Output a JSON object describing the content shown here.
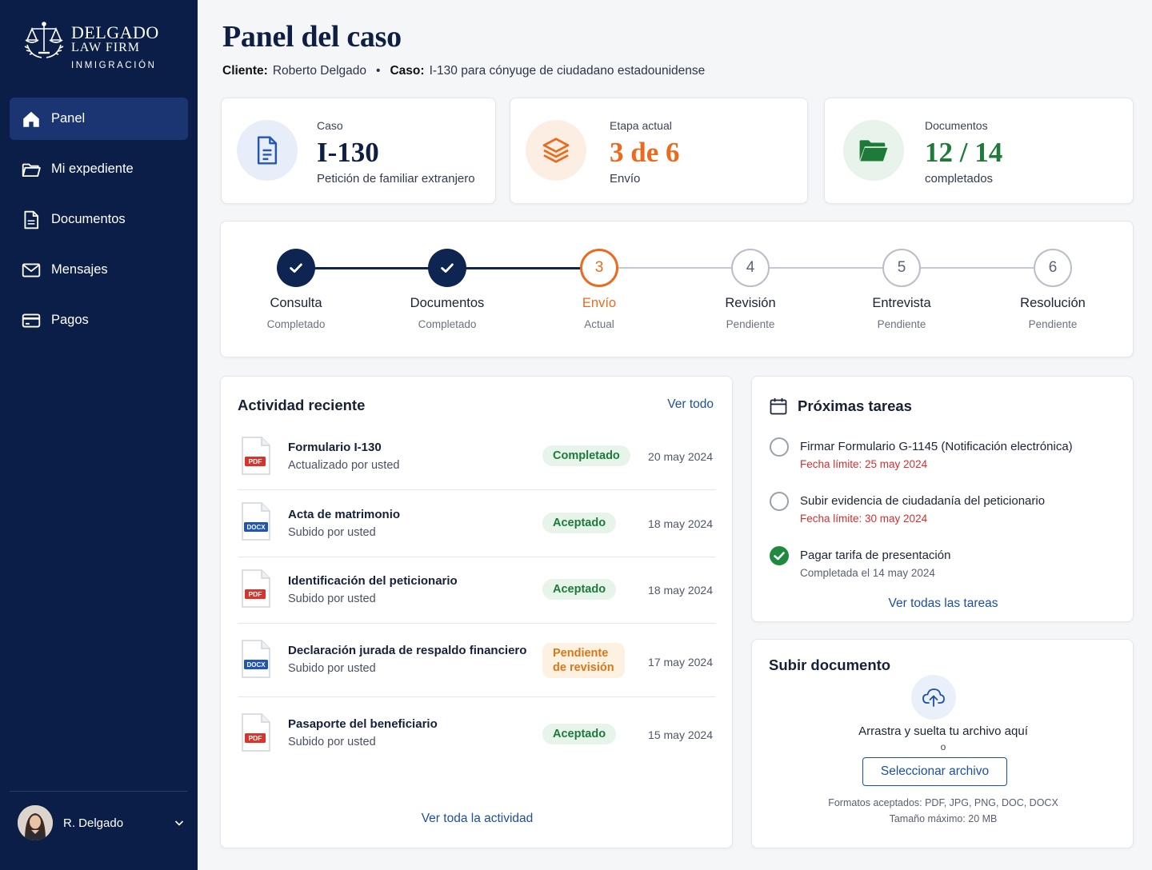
{
  "brand": {
    "name": "DELGADO",
    "sub": "LAW FIRM",
    "tag": "INMIGRACIÓN"
  },
  "nav": [
    {
      "label": "Panel",
      "icon": "home-icon",
      "active": true
    },
    {
      "label": "Mi expediente",
      "icon": "folder-icon"
    },
    {
      "label": "Documentos",
      "icon": "document-icon"
    },
    {
      "label": "Mensajes",
      "icon": "mail-icon"
    },
    {
      "label": "Pagos",
      "icon": "credit-card-icon"
    }
  ],
  "user": {
    "name": "R. Delgado"
  },
  "header": {
    "title": "Panel del caso",
    "client_label": "Cliente:",
    "client": "Roberto Delgado",
    "case_label": "Caso:",
    "case": "I-130 para cónyuge de ciudadano estadounidense"
  },
  "stats": {
    "case": {
      "label": "Caso",
      "value": "I-130",
      "desc": "Petición de familiar extranjero",
      "color": "#0f1f44"
    },
    "stage": {
      "label": "Etapa actual",
      "value": "3 de 6",
      "desc": "Envío",
      "color": "#ec6a1e"
    },
    "docs": {
      "label": "Documentos",
      "value": "12 / 14",
      "desc": "completados",
      "color": "#1f7a3a"
    }
  },
  "steps": [
    {
      "num": "1",
      "name": "Consulta",
      "status": "Completado",
      "state": "done"
    },
    {
      "num": "2",
      "name": "Documentos",
      "status": "Completado",
      "state": "done"
    },
    {
      "num": "3",
      "name": "Envío",
      "status": "Actual",
      "state": "current"
    },
    {
      "num": "4",
      "name": "Revisión",
      "status": "Pendiente",
      "state": "pending"
    },
    {
      "num": "5",
      "name": "Entrevista",
      "status": "Pendiente",
      "state": "pending"
    },
    {
      "num": "6",
      "name": "Resolución",
      "status": "Pendiente",
      "state": "pending"
    }
  ],
  "activity": {
    "title": "Actividad reciente",
    "view_all": "Ver todo",
    "footer_link": "Ver toda la actividad",
    "items": [
      {
        "title": "Formulario I-130",
        "sub": "Actualizado por usted",
        "type": "PDF",
        "status": "Completado",
        "date": "20 may 2024"
      },
      {
        "title": "Acta de matrimonio",
        "sub": "Subido por usted",
        "type": "DOCX",
        "status": "Aceptado",
        "date": "18 may 2024"
      },
      {
        "title": "Identificación del peticionario",
        "sub": "Subido por usted",
        "type": "PDF",
        "status": "Aceptado",
        "date": "18 may 2024"
      },
      {
        "title": "Declaración jurada de respaldo financiero",
        "sub": "Subido por usted",
        "type": "DOCX",
        "status_line1": "Pendiente",
        "status_line2": "de revisión",
        "date": "17 may 2024"
      },
      {
        "title": "Pasaporte del beneficiario",
        "sub": "Subido por usted",
        "type": "PDF",
        "status": "Aceptado",
        "date": "15 may 2024"
      }
    ]
  },
  "tasks": {
    "title": "Próximas tareas",
    "view_all": "Ver todas las tareas",
    "items": [
      {
        "title": "Firmar Formulario G-1145 (Notificación electrónica)",
        "sub": "Fecha límite: 25 may 2024",
        "done": false
      },
      {
        "title": "Subir evidencia de ciudadanía del peticionario",
        "sub": "Fecha límite: 30 may 2024",
        "done": false
      },
      {
        "title": "Pagar tarifa de presentación",
        "sub": "Completada el 14 may 2024",
        "done": true
      }
    ]
  },
  "upload": {
    "title": "Subir documento",
    "drop_text": "Arrastra y suelta tu archivo aquí",
    "or": "o",
    "button": "Seleccionar archivo",
    "formats": "Formatos aceptados: PDF, JPG, PNG, DOC, DOCX",
    "max_size": "Tamaño máximo: 20 MB"
  },
  "colors": {
    "navy": "#0b1e48",
    "orange": "#ec6a1e",
    "green": "#1f7a3a",
    "link": "#1d4fa3",
    "danger": "#d32f2f"
  }
}
